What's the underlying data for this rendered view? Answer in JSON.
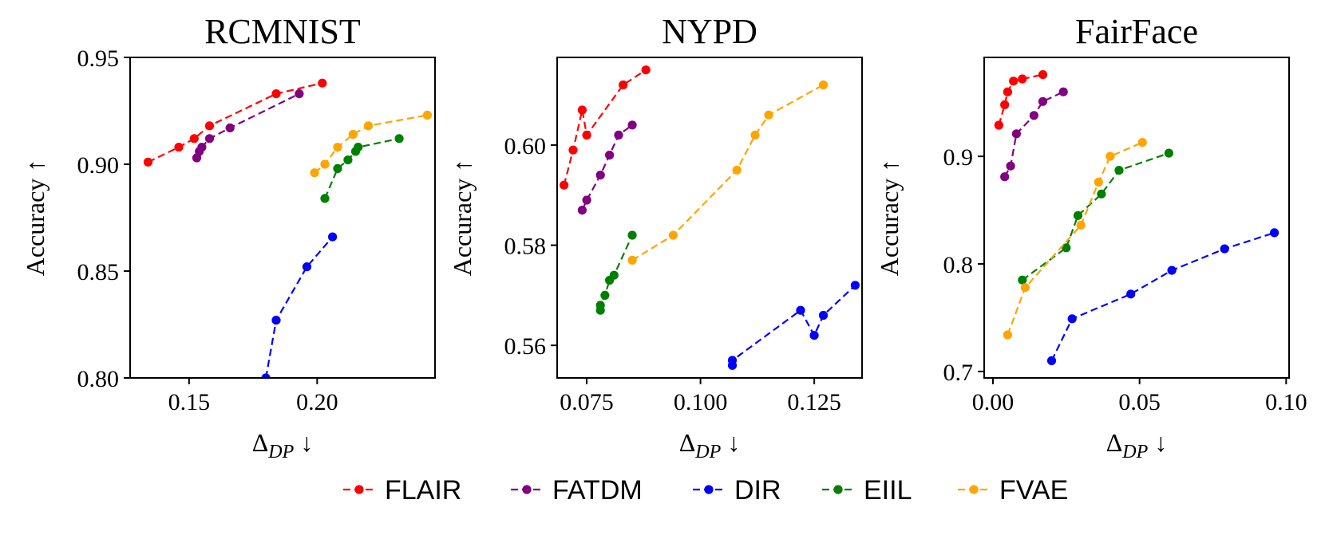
{
  "chart_data": [
    {
      "type": "line",
      "title": "RCMNIST",
      "xlabel": "Δ_DP ↓",
      "ylabel": "Accuracy ↑",
      "xlim": [
        0.127,
        0.246
      ],
      "ylim": [
        0.8,
        0.95
      ],
      "xticks": [
        0.15,
        0.2
      ],
      "xtick_labels": [
        "0.15",
        "0.20"
      ],
      "yticks": [
        0.8,
        0.85,
        0.9,
        0.95
      ],
      "ytick_labels": [
        "0.80",
        "0.85",
        "0.90",
        "0.95"
      ],
      "series": [
        {
          "name": "FLAIR",
          "x": [
            0.134,
            0.146,
            0.152,
            0.158,
            0.184,
            0.202
          ],
          "y": [
            0.901,
            0.908,
            0.912,
            0.918,
            0.933,
            0.938
          ]
        },
        {
          "name": "FATDM",
          "x": [
            0.153,
            0.154,
            0.155,
            0.158,
            0.166,
            0.193
          ],
          "y": [
            0.903,
            0.906,
            0.908,
            0.912,
            0.917,
            0.933
          ]
        },
        {
          "name": "DIR",
          "x": [
            0.18,
            0.184,
            0.196,
            0.206
          ],
          "y": [
            0.8,
            0.827,
            0.852,
            0.866
          ]
        },
        {
          "name": "EIIL",
          "x": [
            0.203,
            0.208,
            0.212,
            0.215,
            0.216,
            0.232
          ],
          "y": [
            0.884,
            0.898,
            0.902,
            0.906,
            0.908,
            0.912
          ]
        },
        {
          "name": "FVAE",
          "x": [
            0.199,
            0.203,
            0.208,
            0.214,
            0.22,
            0.243
          ],
          "y": [
            0.896,
            0.9,
            0.908,
            0.914,
            0.918,
            0.923
          ]
        }
      ]
    },
    {
      "type": "line",
      "title": "NYPD",
      "xlabel": "Δ_DP ↓",
      "ylabel": "Accuracy ↑",
      "xlim": [
        0.0685,
        0.1355
      ],
      "ylim": [
        0.5535,
        0.6175
      ],
      "xticks": [
        0.075,
        0.1,
        0.125
      ],
      "xtick_labels": [
        "0.075",
        "0.100",
        "0.125"
      ],
      "yticks": [
        0.56,
        0.58,
        0.6
      ],
      "ytick_labels": [
        "0.56",
        "0.58",
        "0.60"
      ],
      "series": [
        {
          "name": "FLAIR",
          "x": [
            0.07,
            0.072,
            0.074,
            0.075,
            0.083,
            0.088
          ],
          "y": [
            0.592,
            0.599,
            0.607,
            0.602,
            0.612,
            0.615
          ]
        },
        {
          "name": "FATDM",
          "x": [
            0.074,
            0.075,
            0.078,
            0.08,
            0.082,
            0.085
          ],
          "y": [
            0.587,
            0.589,
            0.594,
            0.598,
            0.602,
            0.604
          ]
        },
        {
          "name": "DIR",
          "x": [
            0.107,
            0.107,
            0.122,
            0.125,
            0.127,
            0.134
          ],
          "y": [
            0.556,
            0.557,
            0.567,
            0.562,
            0.566,
            0.572
          ]
        },
        {
          "name": "EIIL",
          "x": [
            0.078,
            0.078,
            0.079,
            0.08,
            0.081,
            0.085
          ],
          "y": [
            0.567,
            0.568,
            0.57,
            0.573,
            0.574,
            0.582
          ]
        },
        {
          "name": "FVAE",
          "x": [
            0.085,
            0.094,
            0.108,
            0.112,
            0.115,
            0.127
          ],
          "y": [
            0.577,
            0.582,
            0.595,
            0.602,
            0.606,
            0.612
          ]
        }
      ]
    },
    {
      "type": "line",
      "title": "FairFace",
      "xlabel": "Δ_DP ↓",
      "ylabel": "Accuracy ↑",
      "xlim": [
        -0.003,
        0.101
      ],
      "ylim": [
        0.694,
        0.992
      ],
      "xticks": [
        0.0,
        0.05,
        0.1
      ],
      "xtick_labels": [
        "0.00",
        "0.05",
        "0.10"
      ],
      "yticks": [
        0.7,
        0.8,
        0.9
      ],
      "ytick_labels": [
        "0.7",
        "0.8",
        "0.9"
      ],
      "series": [
        {
          "name": "FLAIR",
          "x": [
            0.002,
            0.004,
            0.005,
            0.007,
            0.01,
            0.017
          ],
          "y": [
            0.929,
            0.948,
            0.96,
            0.97,
            0.972,
            0.976
          ]
        },
        {
          "name": "FATDM",
          "x": [
            0.004,
            0.006,
            0.008,
            0.014,
            0.017,
            0.024
          ],
          "y": [
            0.881,
            0.891,
            0.921,
            0.938,
            0.951,
            0.96
          ]
        },
        {
          "name": "DIR",
          "x": [
            0.02,
            0.027,
            0.047,
            0.061,
            0.079,
            0.096
          ],
          "y": [
            0.71,
            0.749,
            0.772,
            0.794,
            0.814,
            0.829
          ]
        },
        {
          "name": "EIIL",
          "x": [
            0.01,
            0.025,
            0.029,
            0.037,
            0.043,
            0.06
          ],
          "y": [
            0.785,
            0.815,
            0.845,
            0.865,
            0.887,
            0.903
          ]
        },
        {
          "name": "FVAE",
          "x": [
            0.005,
            0.011,
            0.03,
            0.036,
            0.04,
            0.051
          ],
          "y": [
            0.734,
            0.778,
            0.836,
            0.876,
            0.9,
            0.913
          ]
        }
      ]
    }
  ],
  "legend": {
    "entries": [
      {
        "label": "FLAIR",
        "color": "#ff0000"
      },
      {
        "label": "FATDM",
        "color": "#800080"
      },
      {
        "label": "DIR",
        "color": "#0000ff"
      },
      {
        "label": "EIIL",
        "color": "#008000"
      },
      {
        "label": "FVAE",
        "color": "#ffa500"
      }
    ]
  }
}
